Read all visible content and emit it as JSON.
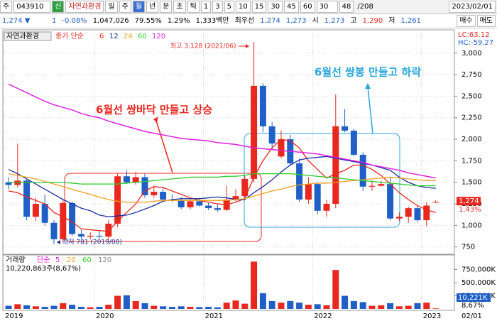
{
  "toolbar": {
    "items": [
      "주",
      "043910",
      "신",
      "자연과환경",
      "일",
      "주",
      "월",
      "년",
      "분",
      "초",
      "틱",
      "1",
      "3",
      "5",
      "10",
      "15",
      "30",
      "45",
      "60",
      "30",
      "48",
      "/208",
      "2023/02/01"
    ]
  },
  "quote": {
    "items": [
      "1,274 ▼",
      "1",
      "-0.08%",
      "1,047,026",
      "79.55%",
      "1.29%",
      "1,333백만",
      "최우선",
      "1,274",
      "1,273",
      "시",
      "1,273",
      "고",
      "1,290",
      "저",
      "1,261"
    ],
    "buttons": [
      "매수",
      "매도"
    ]
  },
  "chart_data": [
    {
      "type": "candlestick",
      "title": "자연과환경",
      "legend_title": "종가 단순",
      "up_color": "#e8271f",
      "down_color": "#1f5fc6",
      "categories": [
        "2019",
        null,
        null,
        null,
        null,
        null,
        null,
        null,
        null,
        null,
        "2020",
        null,
        null,
        null,
        null,
        null,
        null,
        null,
        null,
        null,
        null,
        null,
        "2021",
        null,
        null,
        null,
        null,
        null,
        null,
        null,
        null,
        null,
        null,
        null,
        "2022",
        null,
        null,
        null,
        null,
        null,
        null,
        null,
        null,
        null,
        null,
        null,
        "2023",
        null
      ],
      "open": [
        1500,
        1470,
        1520,
        1100,
        1250,
        1030,
        840,
        1260,
        900,
        870,
        880,
        870,
        1020,
        1570,
        1500,
        1560,
        1350,
        1390,
        1300,
        1290,
        1210,
        1280,
        1230,
        1200,
        1180,
        1300,
        1340,
        1540,
        2620,
        2150,
        1800,
        2000,
        1720,
        1300,
        1480,
        1170,
        1250,
        2150,
        2100,
        1820,
        1450,
        1460,
        1480,
        1080,
        1100,
        1200,
        1060,
        1273
      ],
      "high": [
        1560,
        1950,
        1540,
        1320,
        1360,
        1060,
        1300,
        1280,
        950,
        920,
        940,
        1060,
        1600,
        1640,
        1620,
        1600,
        1460,
        1440,
        1360,
        1330,
        1310,
        1320,
        1260,
        1240,
        1460,
        1420,
        1580,
        3128,
        2650,
        2200,
        2100,
        2050,
        1780,
        1560,
        1500,
        1300,
        2520,
        2350,
        2120,
        1850,
        1520,
        1520,
        1560,
        1150,
        1220,
        1230,
        1270,
        1290
      ],
      "low": [
        1420,
        1440,
        1060,
        1050,
        1000,
        781,
        800,
        880,
        840,
        840,
        850,
        830,
        980,
        1480,
        1470,
        1320,
        1320,
        1280,
        1270,
        1190,
        1190,
        1220,
        1180,
        1160,
        1170,
        1280,
        1320,
        1500,
        2080,
        1880,
        1780,
        1700,
        1270,
        1250,
        1130,
        1100,
        1200,
        2080,
        1800,
        1400,
        1400,
        1450,
        1060,
        1050,
        1030,
        1040,
        990,
        1261
      ],
      "close": [
        1470,
        1520,
        1100,
        1250,
        1030,
        840,
        1260,
        900,
        870,
        880,
        870,
        1020,
        1570,
        1500,
        1560,
        1350,
        1390,
        1300,
        1290,
        1210,
        1280,
        1230,
        1200,
        1180,
        1300,
        1340,
        1540,
        2620,
        2150,
        1950,
        2000,
        1720,
        1300,
        1480,
        1170,
        1250,
        2150,
        2100,
        1820,
        1450,
        1460,
        1480,
        1080,
        1100,
        1200,
        1060,
        1230,
        1274
      ],
      "ma": [
        {
          "name": "6",
          "color": "#e8271f",
          "values": [
            1400,
            1380,
            1330,
            1290,
            1250,
            1150,
            1100,
            1040,
            960,
            950,
            940,
            930,
            1050,
            1150,
            1250,
            1400,
            1450,
            1440,
            1400,
            1360,
            1320,
            1290,
            1270,
            1250,
            1240,
            1270,
            1310,
            1560,
            1750,
            1900,
            2000,
            1980,
            1900,
            1750,
            1650,
            1550,
            1600,
            1640,
            1700,
            1700,
            1650,
            1580,
            1480,
            1380,
            1300,
            1230,
            1180,
            1150
          ]
        },
        {
          "name": "12",
          "color": "#1a2fa0",
          "values": [
            1650,
            1600,
            1540,
            1480,
            1420,
            1360,
            1300,
            1250,
            1200,
            1170,
            1120,
            1100,
            1110,
            1120,
            1150,
            1190,
            1230,
            1280,
            1300,
            1310,
            1310,
            1310,
            1320,
            1330,
            1320,
            1300,
            1300,
            1380,
            1450,
            1530,
            1620,
            1700,
            1760,
            1780,
            1790,
            1800,
            1780,
            1760,
            1740,
            1720,
            1700,
            1670,
            1640,
            1560,
            1500,
            1460,
            1440,
            1430
          ]
        },
        {
          "name": "24",
          "color": "#f0a020",
          "values": [
            1600,
            1580,
            1560,
            1540,
            1510,
            1480,
            1450,
            1420,
            1390,
            1360,
            1330,
            1300,
            1280,
            1270,
            1270,
            1270,
            1280,
            1290,
            1290,
            1290,
            1290,
            1290,
            1290,
            1290,
            1290,
            1300,
            1310,
            1340,
            1370,
            1400,
            1420,
            1450,
            1470,
            1480,
            1490,
            1490,
            1500,
            1510,
            1520,
            1530,
            1540,
            1550,
            1560,
            1550,
            1540,
            1530,
            1520,
            1520
          ]
        },
        {
          "name": "60",
          "color": "#2ecc2e",
          "values": [
            1500,
            1500,
            1500,
            1500,
            1500,
            1500,
            1500,
            1490,
            1480,
            1480,
            1480,
            1480,
            1480,
            1490,
            1500,
            1510,
            1520,
            1530,
            1540,
            1550,
            1560,
            1560,
            1560,
            1560,
            1570,
            1570,
            1580,
            1600,
            1600,
            1600,
            1600,
            1600,
            1590,
            1580,
            1570,
            1560,
            1550,
            1540,
            1530,
            1520,
            1510,
            1500,
            1490,
            1480,
            1470,
            1460,
            1460,
            1460
          ]
        },
        {
          "name": "120",
          "color": "#e020e0",
          "values": [
            2640,
            2590,
            2540,
            2490,
            2440,
            2400,
            2370,
            2340,
            2300,
            2270,
            2250,
            2210,
            2180,
            2150,
            2120,
            2090,
            2070,
            2050,
            2030,
            2010,
            2000,
            1990,
            1980,
            1960,
            1950,
            1940,
            1920,
            1900,
            1890,
            1880,
            1870,
            1860,
            1850,
            1840,
            1830,
            1810,
            1790,
            1770,
            1750,
            1730,
            1700,
            1680,
            1660,
            1640,
            1610,
            1590,
            1570,
            1550
          ]
        }
      ],
      "ylim": [
        690,
        3270
      ],
      "yticks": [
        {
          "value": 3000,
          "label": "3,000"
        },
        {
          "value": 2750,
          "label": "2,750"
        },
        {
          "value": 2500,
          "label": "2,500"
        },
        {
          "value": 2250,
          "label": "2,250"
        },
        {
          "value": 2000,
          "label": "2,000"
        },
        {
          "value": 1750,
          "label": "1,750"
        },
        {
          "value": 1500,
          "label": "1,500"
        },
        {
          "value": 1250,
          "label": "1,250"
        },
        {
          "value": 1000,
          "label": "1,000"
        },
        750
      ],
      "grid": true,
      "lc_label": "LC:63.12",
      "hc_label": "HC:-59.27",
      "last_close_label": "1,274",
      "last_change_label": "1.43%",
      "annotations": [
        {
          "text": "6월선 쌍바닥 만들고 상승",
          "color": "#e8271f"
        },
        {
          "text": "6월선 쌍봉 만들고 하락",
          "color": "#2aa6dc"
        },
        {
          "text": "최고 3,128 (2021/06)",
          "color": "#e8271f"
        },
        {
          "text": "최저 781 (2019/08)",
          "color": "#1a2fa0"
        }
      ],
      "date_label": "02/01"
    },
    {
      "type": "bar",
      "title": "거래량",
      "legend_title": "단순",
      "legend": [
        {
          "name": "5",
          "color": "#e020e0"
        },
        {
          "name": "20",
          "color": "#f0a020"
        },
        {
          "name": "60",
          "color": "#2ecc2e"
        },
        {
          "name": "120",
          "color": "#888888"
        }
      ],
      "subtitle": "10,220,863주(8,67%)",
      "values": [
        60000,
        90000,
        70000,
        50000,
        40000,
        60000,
        110000,
        80000,
        40000,
        30000,
        40000,
        80000,
        250000,
        260000,
        150000,
        110000,
        60000,
        50000,
        40000,
        50000,
        40000,
        35000,
        40000,
        30000,
        120000,
        160000,
        100000,
        900000,
        300000,
        150000,
        120000,
        150000,
        120000,
        80000,
        90000,
        70000,
        740000,
        250000,
        150000,
        130000,
        60000,
        70000,
        110000,
        50000,
        60000,
        110000,
        120000,
        10221
      ],
      "ylim": [
        0,
        1000000
      ],
      "yticks": [
        {
          "value": 750000,
          "label": "750,000K"
        },
        {
          "value": 500000,
          "label": "500,000K"
        },
        {
          "value": 250000,
          "label": "250,000K"
        }
      ],
      "last_volume_label": "10,221K",
      "last_volume_pct_label": "8,67%"
    }
  ]
}
